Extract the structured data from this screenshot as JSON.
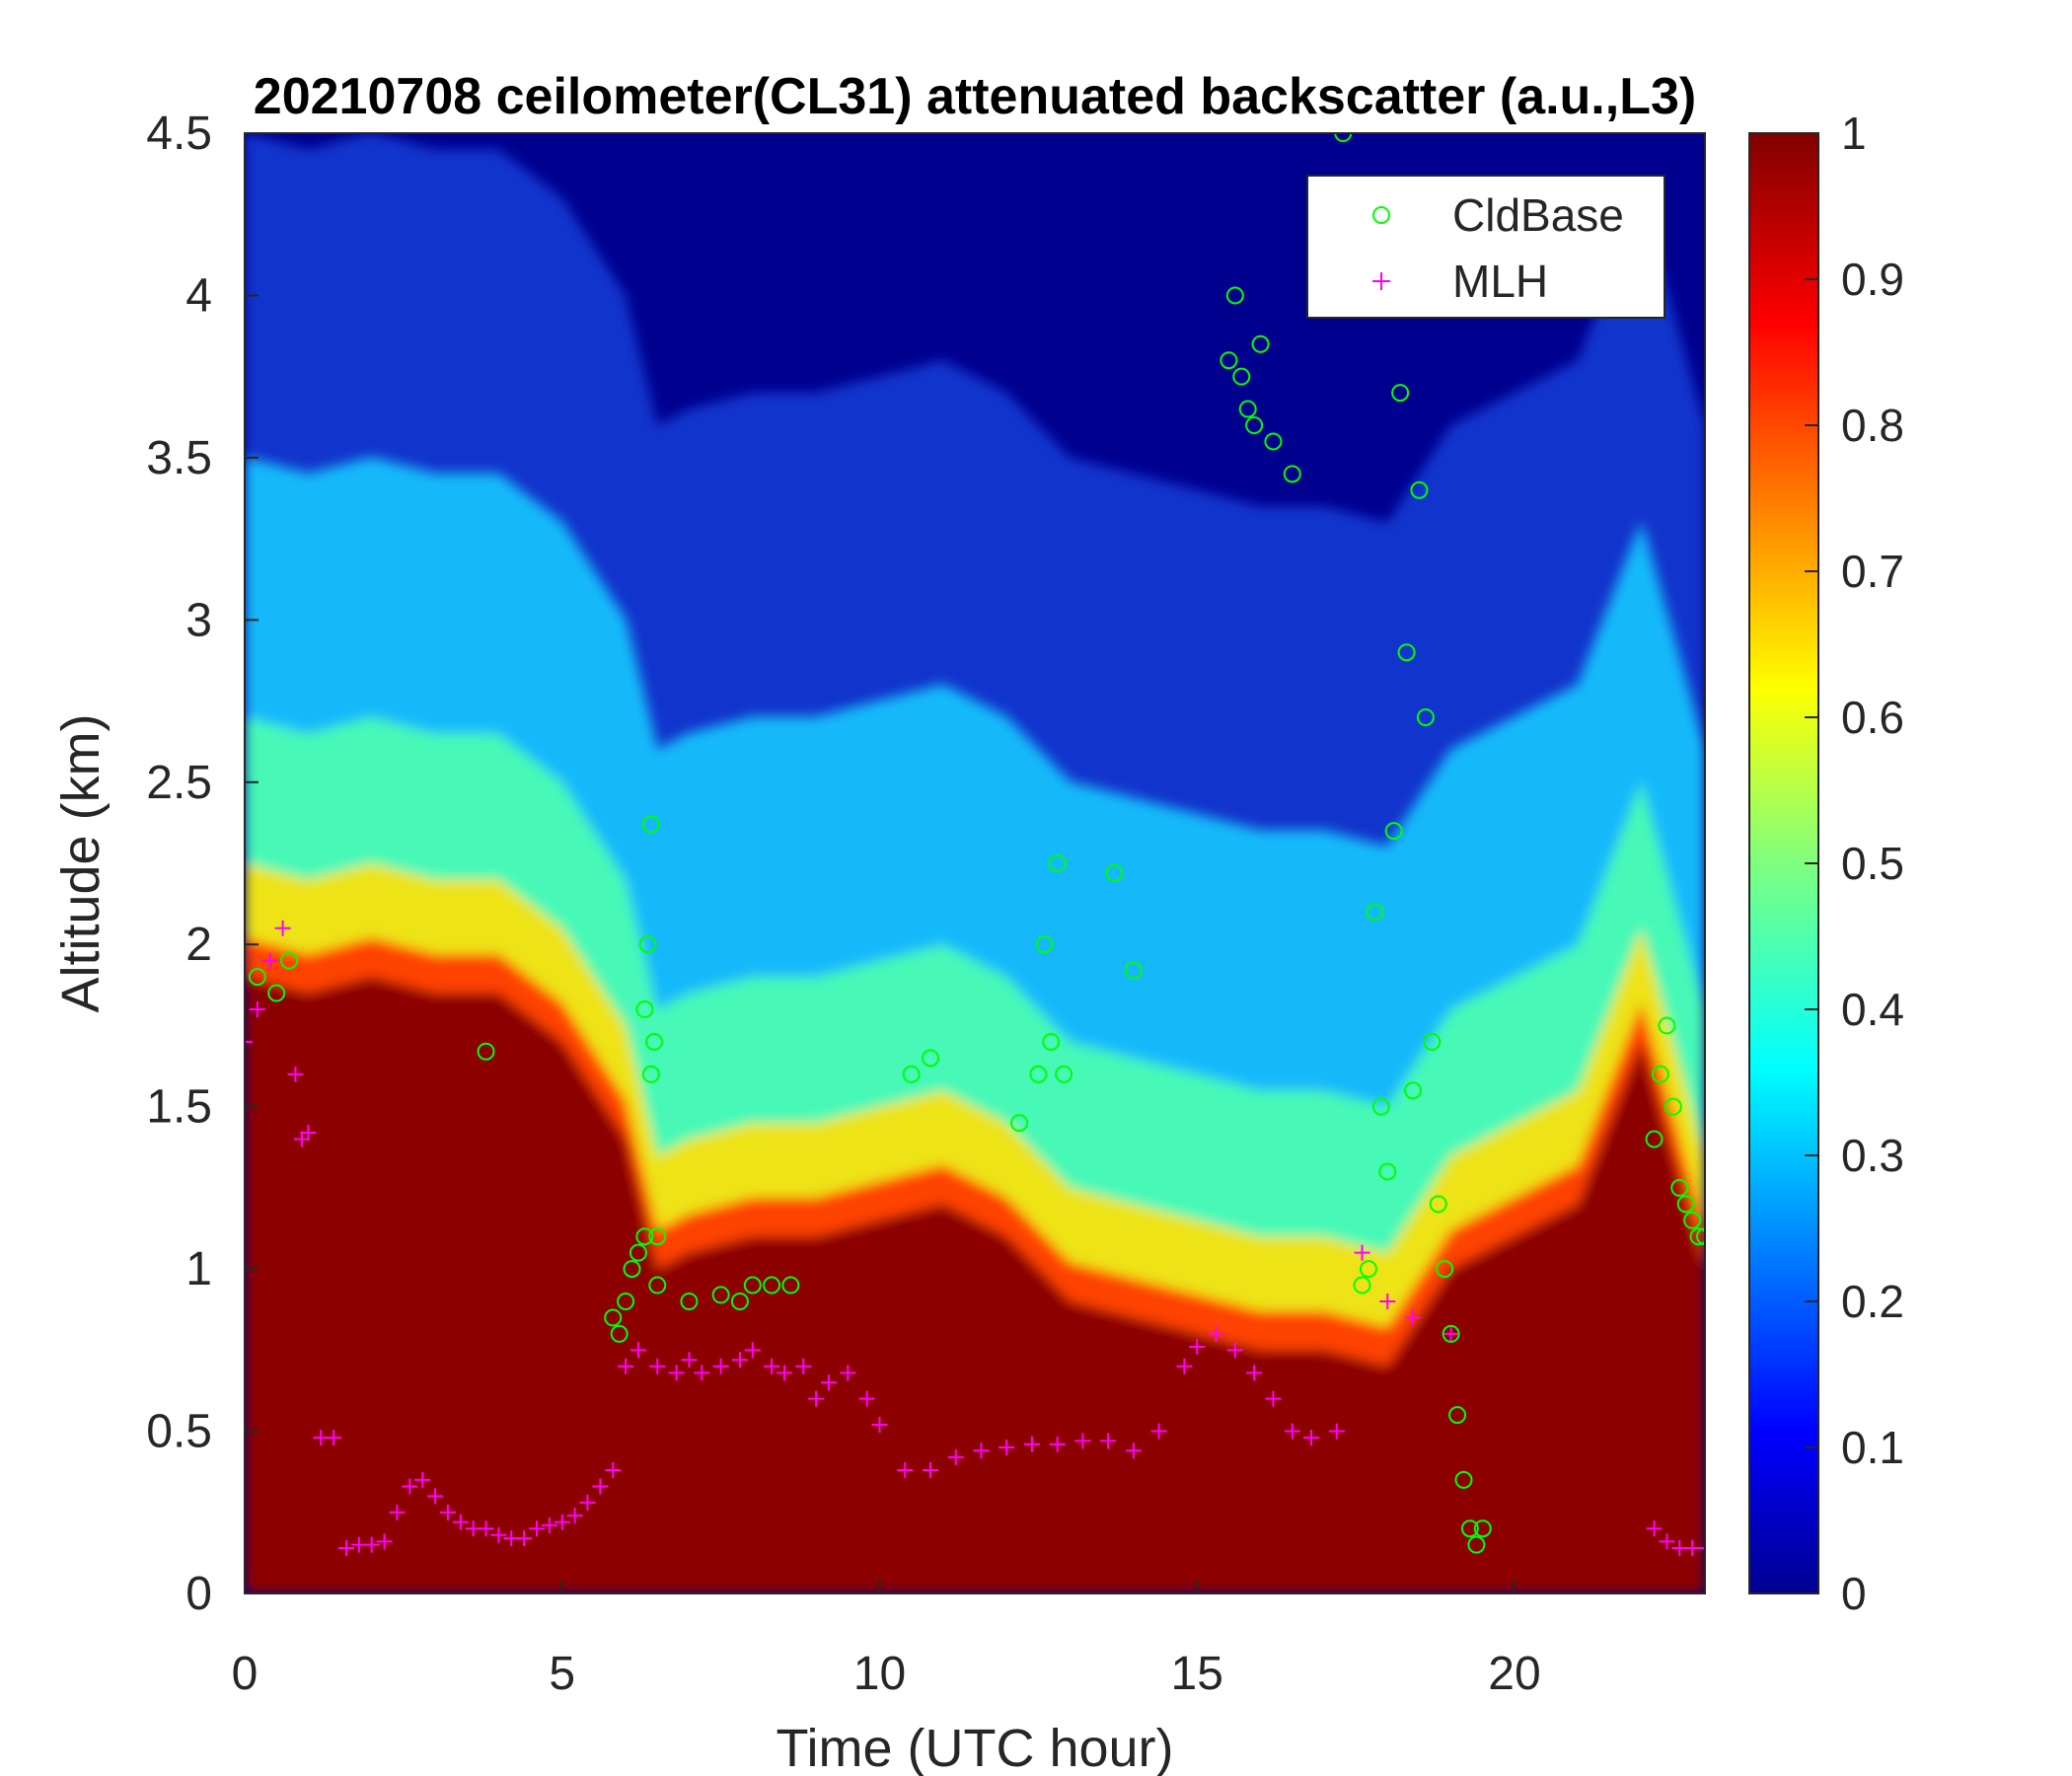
{
  "chart_data": {
    "type": "heatmap",
    "title": "20210708 ceilometer(CL31) attenuated backscatter (a.u.,L3)",
    "xlabel": "Time (UTC hour)",
    "ylabel": "Altitude (km)",
    "xlim": [
      0,
      23
    ],
    "ylim": [
      0,
      4.5
    ],
    "xticks": [
      "0",
      "5",
      "10",
      "15",
      "20"
    ],
    "yticks": [
      "0",
      "0.5",
      "1",
      "1.5",
      "2",
      "2.5",
      "3",
      "3.5",
      "4",
      "4.5"
    ],
    "colorbar": {
      "label": "",
      "range": [
        0,
        1
      ],
      "ticks": [
        "0",
        "0.1",
        "0.2",
        "0.3",
        "0.4",
        "0.5",
        "0.6",
        "0.7",
        "0.8",
        "0.9",
        "1"
      ],
      "colormap": "jet"
    },
    "legend": {
      "position": "top-right",
      "entries": [
        {
          "name": "CldBase",
          "marker": "circle",
          "color": "#00ff00"
        },
        {
          "name": "MLH",
          "marker": "plus",
          "color": "#ff00ff"
        }
      ]
    },
    "backscatter_profile": {
      "description_source": "visual estimate of high (saturated) backscatter layer top over time",
      "time_hour": [
        0,
        1,
        2,
        3,
        4,
        5,
        6,
        6.5,
        7,
        8,
        9,
        10,
        11,
        12,
        13,
        14,
        15,
        16,
        17,
        18,
        19,
        20,
        21,
        22,
        23
      ],
      "dense_layer_top_km": [
        1.9,
        1.85,
        1.9,
        1.85,
        1.85,
        1.7,
        1.4,
        1.0,
        1.05,
        1.1,
        1.1,
        1.15,
        1.2,
        1.1,
        0.9,
        0.85,
        0.8,
        0.75,
        0.75,
        0.7,
        1.0,
        1.1,
        1.2,
        1.7,
        1.0
      ]
    },
    "series": [
      {
        "name": "MLH",
        "x": [
          0,
          0.2,
          0.4,
          0.6,
          0.8,
          0.9,
          1.0,
          1.2,
          1.4,
          1.6,
          1.8,
          2.0,
          2.2,
          2.4,
          2.6,
          2.8,
          3.0,
          3.2,
          3.4,
          3.6,
          3.8,
          4.0,
          4.2,
          4.4,
          4.6,
          4.8,
          5.0,
          5.2,
          5.4,
          5.6,
          5.8,
          6.0,
          6.2,
          6.5,
          6.8,
          7.0,
          7.2,
          7.5,
          7.8,
          8.0,
          8.3,
          8.5,
          8.8,
          9.0,
          9.2,
          9.5,
          9.8,
          10.0,
          10.4,
          10.8,
          11.2,
          11.6,
          12.0,
          12.4,
          12.8,
          13.2,
          13.6,
          14.0,
          14.4,
          14.8,
          15.0,
          15.3,
          15.6,
          15.9,
          16.2,
          16.5,
          16.8,
          17.2,
          17.6,
          18.0,
          18.4,
          19.0,
          22.2,
          22.4,
          22.6,
          22.8,
          23.0
        ],
        "y": [
          1.7,
          1.8,
          1.95,
          2.05,
          1.6,
          1.4,
          1.42,
          0.48,
          0.48,
          0.14,
          0.15,
          0.15,
          0.16,
          0.25,
          0.33,
          0.35,
          0.3,
          0.25,
          0.22,
          0.2,
          0.2,
          0.18,
          0.17,
          0.17,
          0.2,
          0.21,
          0.22,
          0.24,
          0.28,
          0.33,
          0.38,
          0.7,
          0.75,
          0.7,
          0.68,
          0.72,
          0.68,
          0.7,
          0.72,
          0.75,
          0.7,
          0.68,
          0.7,
          0.6,
          0.65,
          0.68,
          0.6,
          0.52,
          0.38,
          0.38,
          0.42,
          0.44,
          0.45,
          0.46,
          0.46,
          0.47,
          0.47,
          0.44,
          0.5,
          0.7,
          0.76,
          0.8,
          0.75,
          0.68,
          0.6,
          0.5,
          0.48,
          0.5,
          1.05,
          0.9,
          0.85,
          0.8,
          0.2,
          0.16,
          0.14,
          0.14,
          0.14
        ]
      },
      {
        "name": "CldBase",
        "x": [
          0.2,
          0.5,
          0.7,
          3.8,
          5.8,
          5.9,
          6.0,
          6.1,
          6.2,
          6.3,
          6.3,
          6.35,
          6.4,
          6.4,
          6.45,
          6.5,
          6.5,
          7.0,
          7.5,
          7.8,
          8.0,
          8.3,
          8.6,
          10.5,
          10.8,
          12.2,
          12.5,
          12.6,
          12.7,
          12.8,
          12.9,
          13.7,
          14.0,
          15.5,
          15.6,
          15.7,
          15.8,
          15.9,
          16.0,
          16.2,
          16.5,
          17.3,
          17.5,
          17.6,
          17.7,
          17.8,
          17.9,
          18.0,
          18.1,
          18.2,
          18.3,
          18.4,
          18.5,
          18.6,
          18.7,
          18.8,
          18.9,
          19.0,
          19.1,
          19.2,
          19.3,
          19.4,
          19.5,
          22.2,
          22.3,
          22.4,
          22.5,
          22.6,
          22.7,
          22.8,
          22.9,
          23.0
        ],
        "y": [
          1.9,
          1.85,
          1.95,
          1.67,
          0.85,
          0.8,
          0.9,
          1.0,
          1.05,
          1.1,
          1.8,
          2.0,
          2.37,
          1.6,
          1.7,
          1.1,
          0.95,
          0.9,
          0.92,
          0.9,
          0.95,
          0.95,
          0.95,
          1.6,
          1.65,
          1.45,
          1.6,
          2.0,
          1.7,
          2.25,
          1.6,
          2.22,
          1.92,
          3.8,
          4.0,
          3.75,
          3.65,
          3.6,
          3.85,
          3.55,
          3.45,
          4.5,
          4.3,
          0.95,
          1.0,
          2.1,
          1.5,
          1.3,
          2.35,
          3.7,
          2.9,
          1.55,
          3.4,
          2.7,
          1.7,
          1.2,
          1.0,
          0.8,
          0.55,
          0.35,
          0.2,
          0.15,
          0.2,
          1.4,
          1.6,
          1.75,
          1.5,
          1.25,
          1.2,
          1.15,
          1.1,
          1.1
        ]
      }
    ]
  }
}
